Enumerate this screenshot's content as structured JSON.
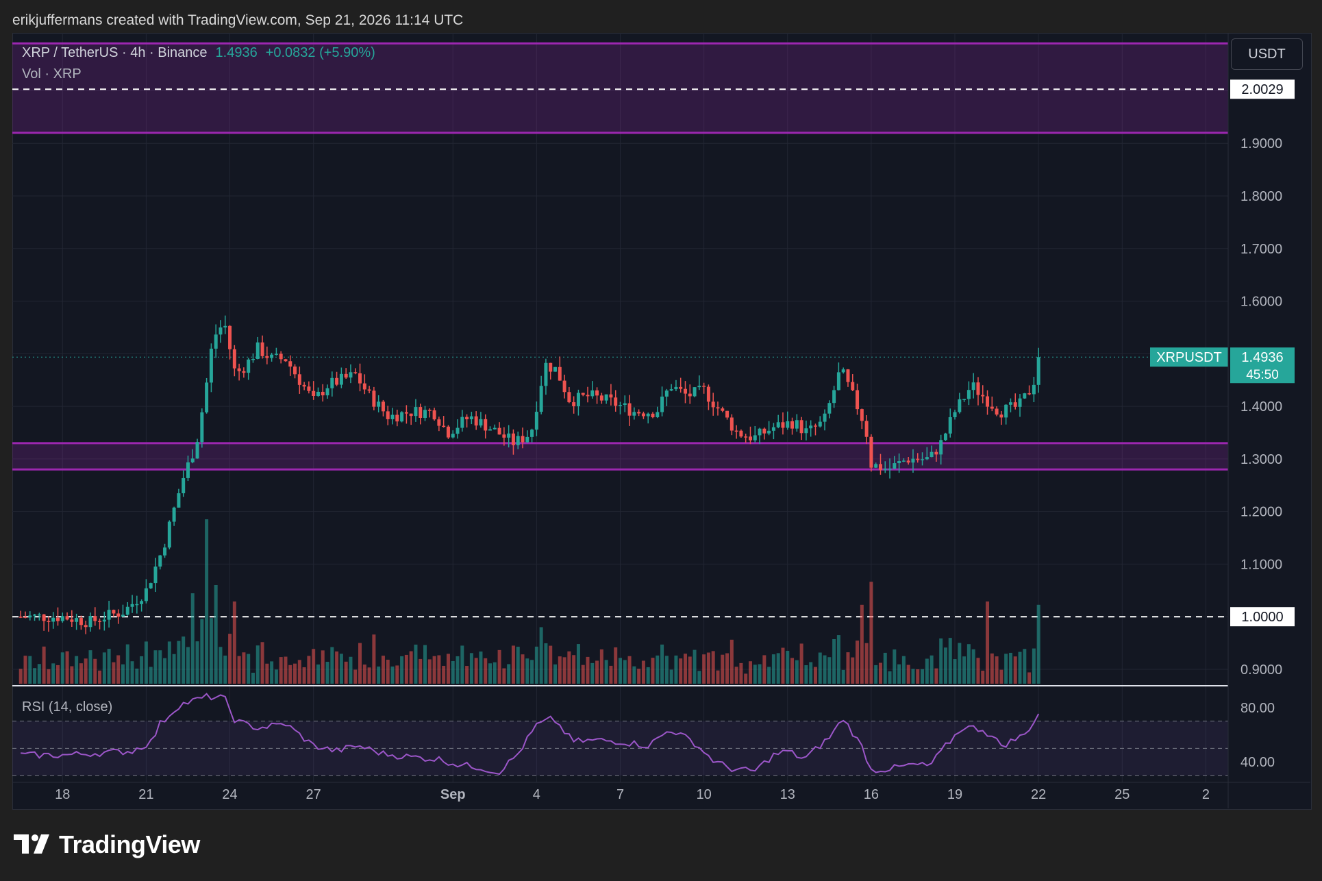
{
  "header": {
    "attribution": "erikjuffermans created with TradingView.com, Sep 21, 2026 11:14 UTC"
  },
  "legend": {
    "symbol": "XRP / TetherUS · 4h · Binance",
    "price": "1.4936",
    "change": "+0.0832 (+5.90%)",
    "volume_label": "Vol · XRP"
  },
  "currency_button": "USDT",
  "price_tag": {
    "symbol": "XRPUSDT",
    "price": "1.4936",
    "countdown": "45:50"
  },
  "rsi": {
    "label": "RSI (14, close)",
    "ticks": [
      "80.00",
      "40.00"
    ]
  },
  "brand": "TradingView",
  "colors": {
    "up": "#26a69a",
    "down": "#ef5350",
    "zone": "#9c27b0",
    "rsi_line": "#9c56c9"
  },
  "chart_data": {
    "type": "candlestick",
    "symbol": "XRPUSDT",
    "interval": "4h",
    "exchange": "Binance",
    "ylim": [
      0.87,
      2.11
    ],
    "y_ticks": [
      "2.0029",
      "1.9000",
      "1.8000",
      "1.7000",
      "1.6000",
      "1.4000",
      "1.3000",
      "1.2000",
      "1.1000",
      "1.0000",
      "0.9000"
    ],
    "x_ticks": [
      "18",
      "21",
      "24",
      "27",
      "Sep",
      "4",
      "7",
      "10",
      "13",
      "16",
      "19",
      "22",
      "25",
      "2"
    ],
    "x_tick_days": [
      0,
      3,
      6,
      9,
      14,
      17,
      20,
      23,
      26,
      29,
      32,
      35,
      38,
      41
    ],
    "x_range_days": [
      -1.8,
      41.8
    ],
    "zones": [
      {
        "low": 1.92,
        "high": 2.09,
        "midline": 2.0029
      },
      {
        "low": 1.28,
        "high": 1.33
      }
    ],
    "horizontal_lines": [
      1.0
    ],
    "current_price": 1.4936,
    "price_anchors": [
      [
        0,
        1.0
      ],
      [
        1.0,
        0.99
      ],
      [
        1.5,
        1.0
      ],
      [
        2.2,
        1.01
      ],
      [
        3.0,
        1.05
      ],
      [
        3.6,
        1.13
      ],
      [
        4.3,
        1.26
      ],
      [
        4.8,
        1.33
      ],
      [
        5.1,
        1.42
      ],
      [
        5.4,
        1.53
      ],
      [
        5.8,
        1.56
      ],
      [
        6.2,
        1.46
      ],
      [
        6.6,
        1.48
      ],
      [
        7.0,
        1.51
      ],
      [
        7.5,
        1.49
      ],
      [
        8.0,
        1.49
      ],
      [
        8.5,
        1.45
      ],
      [
        9.0,
        1.41
      ],
      [
        9.5,
        1.44
      ],
      [
        10.5,
        1.46
      ],
      [
        11.0,
        1.42
      ],
      [
        11.7,
        1.38
      ],
      [
        12.5,
        1.39
      ],
      [
        13.3,
        1.39
      ],
      [
        13.8,
        1.35
      ],
      [
        14.6,
        1.38
      ],
      [
        15.3,
        1.36
      ],
      [
        16.2,
        1.33
      ],
      [
        16.8,
        1.35
      ],
      [
        17.3,
        1.48
      ],
      [
        17.7,
        1.47
      ],
      [
        18.2,
        1.41
      ],
      [
        18.9,
        1.42
      ],
      [
        19.6,
        1.41
      ],
      [
        20.5,
        1.39
      ],
      [
        21.3,
        1.39
      ],
      [
        21.8,
        1.44
      ],
      [
        22.4,
        1.42
      ],
      [
        23.0,
        1.43
      ],
      [
        23.6,
        1.39
      ],
      [
        24.2,
        1.35
      ],
      [
        24.8,
        1.34
      ],
      [
        25.5,
        1.36
      ],
      [
        26.2,
        1.37
      ],
      [
        26.7,
        1.35
      ],
      [
        27.3,
        1.37
      ],
      [
        27.9,
        1.47
      ],
      [
        28.5,
        1.4
      ],
      [
        28.8,
        1.36
      ],
      [
        29.0,
        1.29
      ],
      [
        29.6,
        1.28
      ],
      [
        30.3,
        1.3
      ],
      [
        31.1,
        1.3
      ],
      [
        31.5,
        1.33
      ],
      [
        32.0,
        1.39
      ],
      [
        32.6,
        1.44
      ],
      [
        33.0,
        1.42
      ],
      [
        33.6,
        1.39
      ],
      [
        34.3,
        1.4
      ],
      [
        34.8,
        1.44
      ],
      [
        35.0,
        1.4936
      ]
    ],
    "volume_spikes": [
      [
        4.7,
        0.55
      ],
      [
        5.2,
        1.0
      ],
      [
        5.5,
        0.6
      ],
      [
        6.1,
        0.5
      ],
      [
        28.7,
        0.48
      ],
      [
        29.0,
        0.62
      ],
      [
        33.2,
        0.5
      ],
      [
        35.0,
        0.48
      ]
    ],
    "rsi_ylim": [
      25,
      95
    ],
    "rsi_levels": [
      70,
      50,
      30
    ],
    "rsi_anchors": [
      [
        0,
        45
      ],
      [
        2.5,
        48
      ],
      [
        3.2,
        55
      ],
      [
        3.5,
        68
      ],
      [
        4.2,
        82
      ],
      [
        5.2,
        88
      ],
      [
        5.8,
        87
      ],
      [
        6.2,
        70
      ],
      [
        7.0,
        65
      ],
      [
        8.0,
        68
      ],
      [
        9.0,
        52
      ],
      [
        9.8,
        48
      ],
      [
        10.6,
        52
      ],
      [
        11.5,
        46
      ],
      [
        12.3,
        44
      ],
      [
        13.5,
        42
      ],
      [
        14.2,
        38
      ],
      [
        15.0,
        36
      ],
      [
        15.6,
        32
      ],
      [
        16.3,
        45
      ],
      [
        17.0,
        67
      ],
      [
        17.6,
        72
      ],
      [
        18.3,
        55
      ],
      [
        19.2,
        56
      ],
      [
        20.0,
        55
      ],
      [
        21.0,
        52
      ],
      [
        21.8,
        64
      ],
      [
        22.6,
        55
      ],
      [
        23.4,
        40
      ],
      [
        24.0,
        35
      ],
      [
        24.8,
        33
      ],
      [
        25.5,
        45
      ],
      [
        26.0,
        48
      ],
      [
        26.6,
        42
      ],
      [
        27.5,
        58
      ],
      [
        28.0,
        72
      ],
      [
        28.7,
        50
      ],
      [
        29.0,
        34
      ],
      [
        29.7,
        35
      ],
      [
        30.5,
        38
      ],
      [
        31.1,
        37
      ],
      [
        31.6,
        50
      ],
      [
        32.3,
        66
      ],
      [
        33.0,
        64
      ],
      [
        33.7,
        52
      ],
      [
        34.5,
        60
      ],
      [
        35.0,
        75
      ]
    ]
  }
}
